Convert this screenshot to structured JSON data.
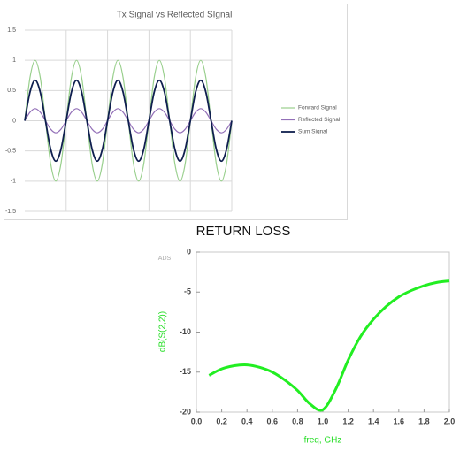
{
  "chart_data": [
    {
      "type": "line",
      "title": "Tx Signal vs Reflected SIgnal",
      "x": [
        0,
        0.125,
        0.25,
        0.375,
        0.5,
        0.625,
        0.75,
        0.875,
        1,
        1.125,
        1.25,
        1.375,
        1.5,
        1.625,
        1.75,
        1.875,
        2,
        2.125,
        2.25,
        2.375,
        2.5,
        2.625,
        2.75,
        2.875,
        3,
        3.125,
        3.25,
        3.375,
        3.5,
        3.625,
        3.75,
        3.875,
        4,
        4.125,
        4.25,
        4.375,
        4.5,
        4.625,
        4.75,
        4.875,
        5
      ],
      "xlim": [
        0,
        5
      ],
      "ylim": [
        -1.5,
        1.5
      ],
      "yticks": [
        -1.5,
        -1,
        -0.5,
        0,
        0.5,
        1,
        1.5
      ],
      "grid": true,
      "legend": "right",
      "series": [
        {
          "name": "Forward Signal",
          "color": "#98cf8c",
          "values": [
            0,
            0.71,
            1,
            0.71,
            0,
            -0.71,
            -1,
            -0.71,
            0,
            0.71,
            1,
            0.71,
            0,
            -0.71,
            -1,
            -0.71,
            0,
            0.71,
            1,
            0.71,
            0,
            -0.71,
            -1,
            -0.71,
            0,
            0.71,
            1,
            0.71,
            0,
            -0.71,
            -1,
            -0.71,
            0,
            0.71,
            1,
            0.71,
            0,
            -0.71,
            -1,
            -0.71,
            0
          ]
        },
        {
          "name": "Reflected Signal",
          "color": "#9370b8",
          "values": [
            0,
            0.14,
            0.2,
            0.14,
            0,
            -0.14,
            -0.2,
            -0.14,
            0,
            0.14,
            0.2,
            0.14,
            0,
            -0.14,
            -0.2,
            -0.14,
            0,
            0.14,
            0.2,
            0.14,
            0,
            -0.14,
            -0.2,
            -0.14,
            0,
            0.14,
            0.2,
            0.14,
            0,
            -0.14,
            -0.2,
            -0.14,
            0,
            0.14,
            0.2,
            0.14,
            0,
            -0.14,
            -0.2,
            -0.14,
            0
          ]
        },
        {
          "name": "Sum Signal",
          "color": "#0f1f4f",
          "values": [
            0,
            0.47,
            0.67,
            0.47,
            0,
            -0.47,
            -0.67,
            -0.47,
            0,
            0.47,
            0.67,
            0.47,
            0,
            -0.47,
            -0.67,
            -0.47,
            0,
            0.47,
            0.67,
            0.47,
            0,
            -0.47,
            -0.67,
            -0.47,
            0,
            0.47,
            0.67,
            0.47,
            0,
            -0.47,
            -0.67,
            -0.47,
            0,
            0.47,
            0.67,
            0.47,
            0,
            -0.47,
            -0.67,
            -0.47,
            0
          ]
        }
      ]
    },
    {
      "type": "line",
      "title": "RETURN LOSS",
      "x_label": "freq, GHz",
      "y_label": "dB(S(2,2))",
      "annotations": [
        "ADS"
      ],
      "x": [
        0.1,
        0.2,
        0.3,
        0.4,
        0.5,
        0.6,
        0.7,
        0.8,
        0.9,
        1.0,
        1.1,
        1.2,
        1.3,
        1.4,
        1.5,
        1.6,
        1.7,
        1.8,
        1.9,
        2.0
      ],
      "xlim": [
        0,
        2
      ],
      "xticks": [
        {
          "value": 0,
          "label": "0.0"
        },
        {
          "value": 0.2,
          "label": "0.2"
        },
        {
          "value": 0.4,
          "label": "0.4"
        },
        {
          "value": 0.6,
          "label": "0.6"
        },
        {
          "value": 0.8,
          "label": "0.8"
        },
        {
          "value": 1,
          "label": "1.0"
        },
        {
          "value": 1.2,
          "label": "1.2"
        },
        {
          "value": 1.4,
          "label": "1.4"
        },
        {
          "value": 1.6,
          "label": "1.6"
        },
        {
          "value": 1.8,
          "label": "1.8"
        },
        {
          "value": 2,
          "label": "2.0"
        }
      ],
      "ylim": [
        -20,
        0
      ],
      "yticks": [
        -20,
        -15,
        -10,
        -5,
        0
      ],
      "grid": false,
      "series": [
        {
          "name": "dB(S(2,2))",
          "color": "#22ee22",
          "values": [
            -15.4,
            -14.6,
            -14.2,
            -14.1,
            -14.4,
            -15.0,
            -16.0,
            -17.3,
            -19.0,
            -19.7,
            -17.2,
            -13.5,
            -10.5,
            -8.4,
            -6.8,
            -5.6,
            -4.8,
            -4.2,
            -3.8,
            -3.6
          ]
        }
      ]
    }
  ]
}
